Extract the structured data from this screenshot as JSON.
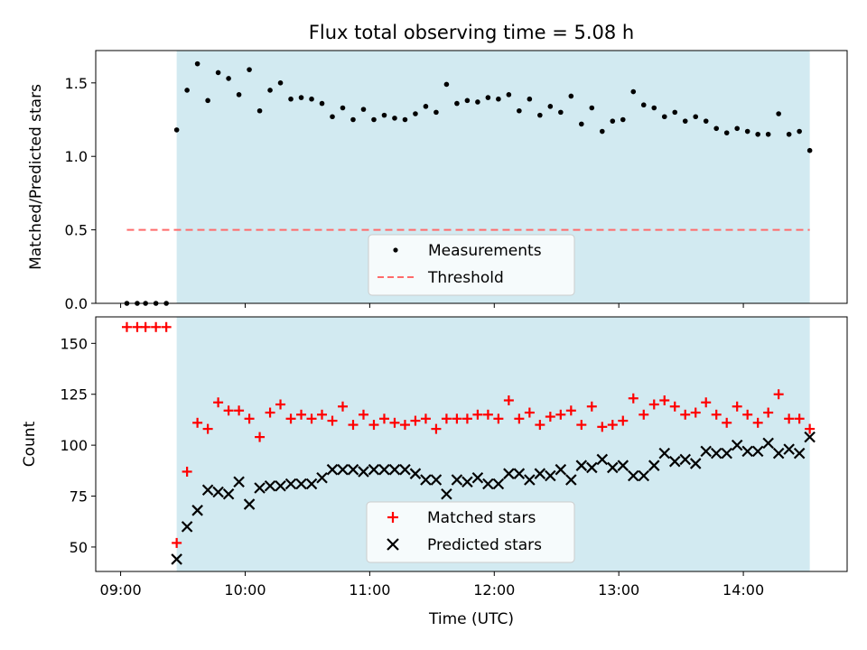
{
  "chart_data": [
    {
      "type": "scatter",
      "title": "Flux total observing time = 5.08 h",
      "ylabel": "Matched/Predicted stars",
      "xlabel": "",
      "ylim": [
        0,
        1.72
      ],
      "yticks": [
        0.0,
        0.5,
        1.0,
        1.5
      ],
      "ytick_labels": [
        "0.0",
        "0.5",
        "1.0",
        "1.5"
      ],
      "shaded_interval": {
        "start": "09:27",
        "end": "14:32",
        "color": "#add8e6"
      },
      "legend": {
        "position": "bottom-center",
        "entries": [
          "Measurements",
          "Threshold"
        ]
      },
      "threshold": {
        "name": "Threshold",
        "value": 0.5,
        "x_start": "09:03",
        "x_end": "14:32",
        "color": "#ff6b6b",
        "style": "dashed"
      },
      "series": [
        {
          "name": "Measurements",
          "marker": "dot",
          "color": "#000000",
          "x": [
            "09:03",
            "09:08",
            "09:12",
            "09:17",
            "09:22",
            "09:27",
            "09:32",
            "09:37",
            "09:42",
            "09:47",
            "09:52",
            "09:57",
            "10:02",
            "10:07",
            "10:12",
            "10:17",
            "10:22",
            "10:27",
            "10:32",
            "10:37",
            "10:42",
            "10:47",
            "10:52",
            "10:57",
            "11:02",
            "11:07",
            "11:12",
            "11:17",
            "11:22",
            "11:27",
            "11:32",
            "11:37",
            "11:42",
            "11:47",
            "11:52",
            "11:57",
            "12:02",
            "12:07",
            "12:12",
            "12:17",
            "12:22",
            "12:27",
            "12:32",
            "12:37",
            "12:42",
            "12:47",
            "12:52",
            "12:57",
            "13:02",
            "13:07",
            "13:12",
            "13:17",
            "13:22",
            "13:27",
            "13:32",
            "13:37",
            "13:42",
            "13:47",
            "13:52",
            "13:57",
            "14:02",
            "14:07",
            "14:12",
            "14:17",
            "14:22",
            "14:27",
            "14:32"
          ],
          "y": [
            0.0,
            0.0,
            0.0,
            0.0,
            0.0,
            1.18,
            1.45,
            1.63,
            1.38,
            1.57,
            1.53,
            1.42,
            1.59,
            1.31,
            1.45,
            1.5,
            1.39,
            1.4,
            1.39,
            1.36,
            1.27,
            1.33,
            1.25,
            1.32,
            1.25,
            1.28,
            1.26,
            1.25,
            1.29,
            1.34,
            1.3,
            1.49,
            1.36,
            1.38,
            1.37,
            1.4,
            1.39,
            1.42,
            1.31,
            1.39,
            1.28,
            1.34,
            1.3,
            1.41,
            1.22,
            1.33,
            1.17,
            1.24,
            1.25,
            1.44,
            1.35,
            1.33,
            1.27,
            1.3,
            1.24,
            1.27,
            1.24,
            1.19,
            1.16,
            1.19,
            1.17,
            1.15,
            1.15,
            1.29,
            1.15,
            1.17,
            1.04
          ]
        }
      ]
    },
    {
      "type": "scatter",
      "title": "",
      "ylabel": "Count",
      "xlabel": "Time (UTC)",
      "xlim": [
        "08:48",
        "14:50"
      ],
      "xticks": [
        "09:00",
        "10:00",
        "11:00",
        "12:00",
        "13:00",
        "14:00"
      ],
      "ylim": [
        38,
        163
      ],
      "yticks": [
        50,
        75,
        100,
        125,
        150
      ],
      "ytick_labels": [
        "50",
        "75",
        "100",
        "125",
        "150"
      ],
      "shaded_interval": {
        "start": "09:27",
        "end": "14:32",
        "color": "#add8e6"
      },
      "legend": {
        "position": "bottom-center",
        "entries": [
          "Matched stars",
          "Predicted stars"
        ]
      },
      "series": [
        {
          "name": "Matched stars",
          "marker": "plus",
          "color": "#ff0000",
          "x": [
            "09:03",
            "09:08",
            "09:12",
            "09:17",
            "09:22",
            "09:27",
            "09:32",
            "09:37",
            "09:42",
            "09:47",
            "09:52",
            "09:57",
            "10:02",
            "10:07",
            "10:12",
            "10:17",
            "10:22",
            "10:27",
            "10:32",
            "10:37",
            "10:42",
            "10:47",
            "10:52",
            "10:57",
            "11:02",
            "11:07",
            "11:12",
            "11:17",
            "11:22",
            "11:27",
            "11:32",
            "11:37",
            "11:42",
            "11:47",
            "11:52",
            "11:57",
            "12:02",
            "12:07",
            "12:12",
            "12:17",
            "12:22",
            "12:27",
            "12:32",
            "12:37",
            "12:42",
            "12:47",
            "12:52",
            "12:57",
            "13:02",
            "13:07",
            "13:12",
            "13:17",
            "13:22",
            "13:27",
            "13:32",
            "13:37",
            "13:42",
            "13:47",
            "13:52",
            "13:57",
            "14:02",
            "14:07",
            "14:12",
            "14:17",
            "14:22",
            "14:27",
            "14:32"
          ],
          "y": [
            158,
            158,
            158,
            158,
            158,
            52,
            87,
            111,
            108,
            121,
            117,
            117,
            113,
            104,
            116,
            120,
            113,
            115,
            113,
            115,
            112,
            119,
            110,
            115,
            110,
            113,
            111,
            110,
            112,
            113,
            108,
            113,
            113,
            113,
            115,
            115,
            113,
            122,
            113,
            116,
            110,
            114,
            115,
            117,
            110,
            119,
            109,
            110,
            112,
            123,
            115,
            120,
            122,
            119,
            115,
            116,
            121,
            115,
            111,
            119,
            115,
            111,
            116,
            125,
            113,
            113,
            108
          ]
        },
        {
          "name": "Predicted stars",
          "marker": "x",
          "color": "#000000",
          "x": [
            "09:27",
            "09:32",
            "09:37",
            "09:42",
            "09:47",
            "09:52",
            "09:57",
            "10:02",
            "10:07",
            "10:12",
            "10:17",
            "10:22",
            "10:27",
            "10:32",
            "10:37",
            "10:42",
            "10:47",
            "10:52",
            "10:57",
            "11:02",
            "11:07",
            "11:12",
            "11:17",
            "11:22",
            "11:27",
            "11:32",
            "11:37",
            "11:42",
            "11:47",
            "11:52",
            "11:57",
            "12:02",
            "12:07",
            "12:12",
            "12:17",
            "12:22",
            "12:27",
            "12:32",
            "12:37",
            "12:42",
            "12:47",
            "12:52",
            "12:57",
            "13:02",
            "13:07",
            "13:12",
            "13:17",
            "13:22",
            "13:27",
            "13:32",
            "13:37",
            "13:42",
            "13:47",
            "13:52",
            "13:57",
            "14:02",
            "14:07",
            "14:12",
            "14:17",
            "14:22",
            "14:27",
            "14:32"
          ],
          "y": [
            44,
            60,
            68,
            78,
            77,
            76,
            82,
            71,
            79,
            80,
            80,
            81,
            81,
            81,
            84,
            88,
            88,
            88,
            87,
            88,
            88,
            88,
            88,
            86,
            83,
            83,
            76,
            83,
            82,
            84,
            81,
            81,
            86,
            86,
            83,
            86,
            85,
            88,
            83,
            90,
            89,
            93,
            89,
            90,
            85,
            85,
            90,
            96,
            92,
            93,
            91,
            97,
            96,
            96,
            100,
            97,
            97,
            101,
            96,
            98,
            96,
            104
          ]
        }
      ]
    }
  ]
}
